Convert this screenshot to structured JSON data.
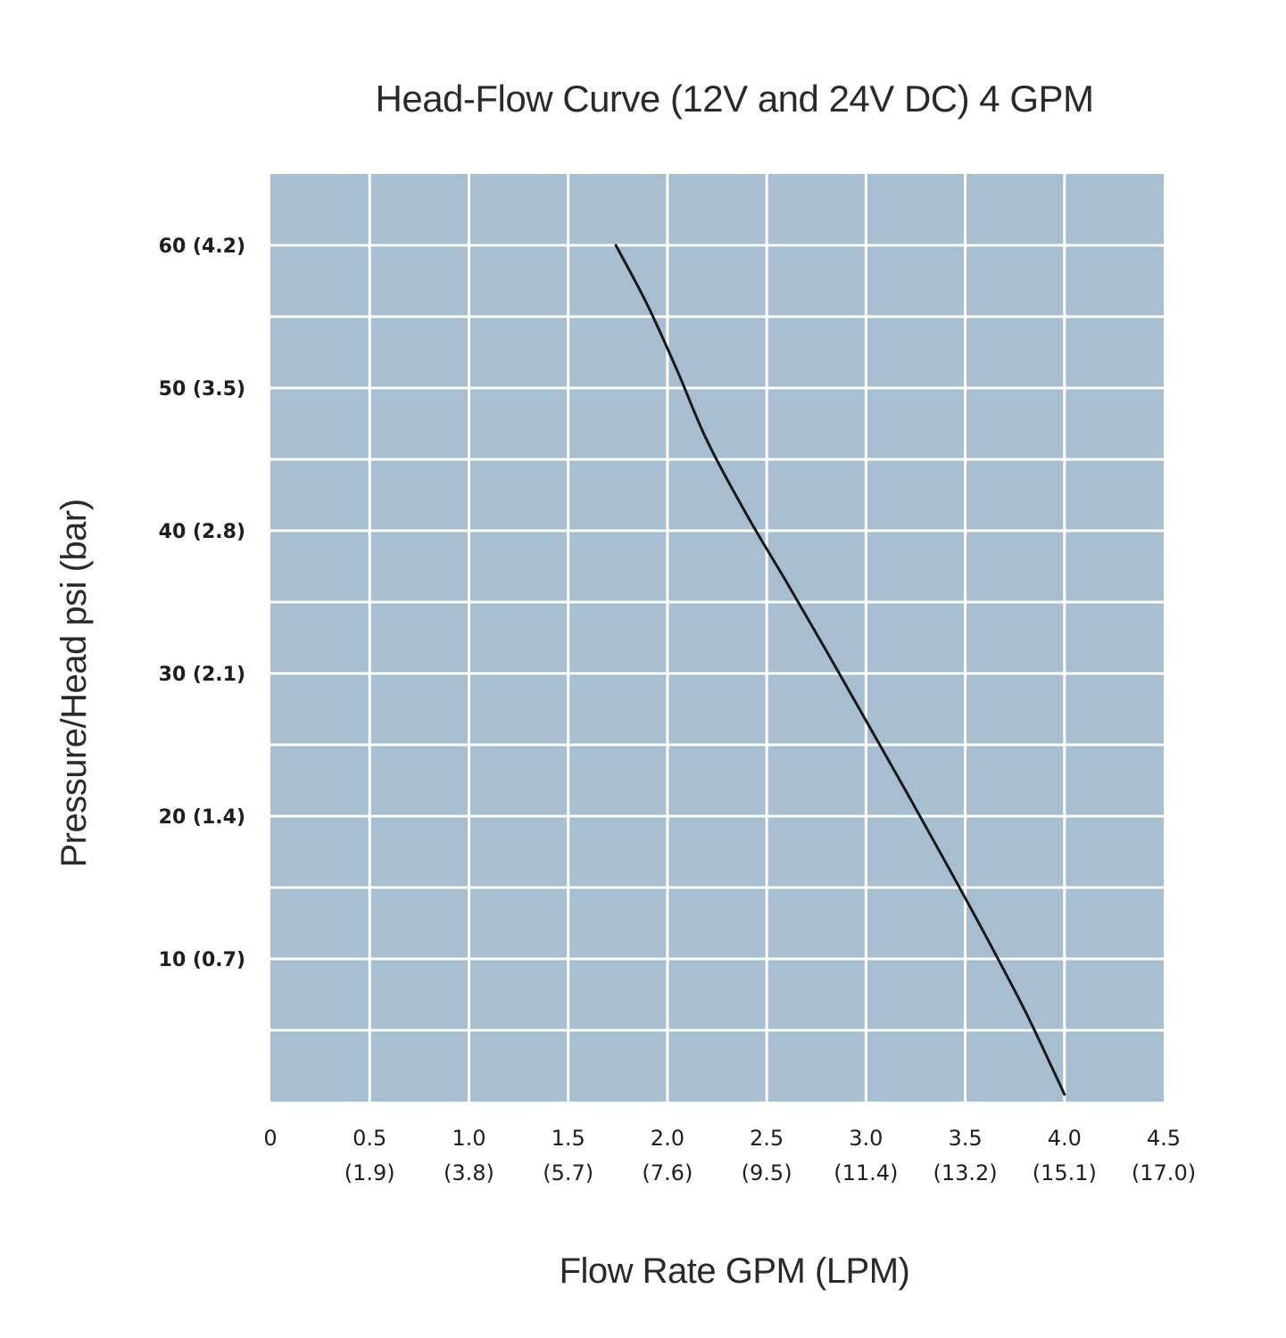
{
  "chart_data": {
    "type": "line",
    "title": "Head-Flow Curve (12V and 24V DC) 4 GPM",
    "xlabel": "Flow Rate GPM (LPM)",
    "ylabel": "Pressure/Head psi (bar)",
    "xlim": [
      0,
      4.5
    ],
    "ylim": [
      0,
      65
    ],
    "grid": true,
    "plot_background": "#a6becf",
    "grid_color": "#ffffff",
    "line_color": "#1a1a1a",
    "x_ticks": [
      {
        "value": 0,
        "label": "0",
        "sub": ""
      },
      {
        "value": 0.5,
        "label": "0.5",
        "sub": "(1.9)"
      },
      {
        "value": 1.0,
        "label": "1.0",
        "sub": "(3.8)"
      },
      {
        "value": 1.5,
        "label": "1.5",
        "sub": "(5.7)"
      },
      {
        "value": 2.0,
        "label": "2.0",
        "sub": "(7.6)"
      },
      {
        "value": 2.5,
        "label": "2.5",
        "sub": "(9.5)"
      },
      {
        "value": 3.0,
        "label": "3.0",
        "sub": "(11.4)"
      },
      {
        "value": 3.5,
        "label": "3.5",
        "sub": "(13.2)"
      },
      {
        "value": 4.0,
        "label": "4.0",
        "sub": "(15.1)"
      },
      {
        "value": 4.5,
        "label": "4.5",
        "sub": "(17.0)"
      }
    ],
    "y_ticks": [
      {
        "value": 10,
        "label": "10 (0.7)"
      },
      {
        "value": 20,
        "label": "20 (1.4)"
      },
      {
        "value": 30,
        "label": "30 (2.1)"
      },
      {
        "value": 40,
        "label": "40 (2.8)"
      },
      {
        "value": 50,
        "label": "50 (3.5)"
      },
      {
        "value": 60,
        "label": "60 (4.2)"
      }
    ],
    "series": [
      {
        "x": [
          1.74,
          1.9,
          2.05,
          2.2,
          2.4,
          2.6,
          2.8,
          3.0,
          3.2,
          3.4,
          3.6,
          3.8,
          3.95,
          4.0
        ],
        "y": [
          60,
          55.8,
          51.2,
          46.3,
          41.1,
          36.4,
          31.6,
          26.7,
          21.8,
          16.8,
          11.7,
          6.4,
          2.0,
          0.5
        ]
      }
    ]
  }
}
